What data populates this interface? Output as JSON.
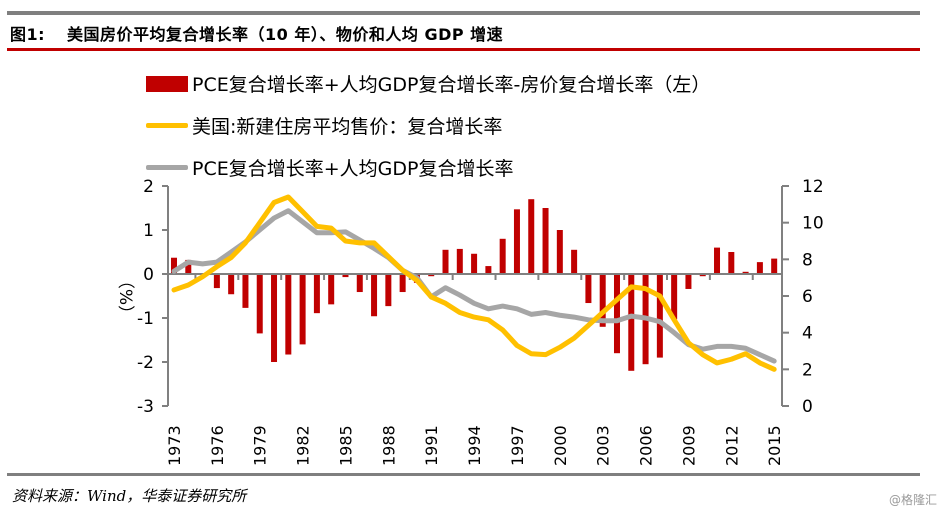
{
  "header": {
    "figure_label": "图1:",
    "title": "美国房价平均复合增长率（10 年）、物价和人均 GDP 增速"
  },
  "footer": {
    "source": "资料来源：Wind，华泰证券研究所",
    "watermark": "@格隆汇"
  },
  "colors": {
    "bar": "#c00000",
    "yellow_line": "#ffc000",
    "gray_line": "#a6a6a6",
    "axis": "#808080",
    "title_rule": "#c00000"
  },
  "chart_data": {
    "type": "bar+line",
    "title": "美国房价平均复合增长率（10 年）、物价和人均 GDP 增速",
    "xlabel": "",
    "ylabel_left": "（%）",
    "ylabel_right": "",
    "ylim_left": [
      -3,
      2
    ],
    "ylim_right": [
      0,
      12
    ],
    "yticks_left": [
      "2",
      "1",
      "0",
      "-1",
      "-2",
      "-3"
    ],
    "yticks_left_values": [
      2,
      1,
      0,
      -1,
      -2,
      -3
    ],
    "yticks_right": [
      "12",
      "10",
      "8",
      "6",
      "4",
      "2",
      "0"
    ],
    "yticks_right_values": [
      12,
      10,
      8,
      6,
      4,
      2,
      0
    ],
    "grid": false,
    "legend_position": "top",
    "x": [
      1973,
      1974,
      1975,
      1976,
      1977,
      1978,
      1979,
      1980,
      1981,
      1982,
      1983,
      1984,
      1985,
      1986,
      1987,
      1988,
      1989,
      1990,
      1991,
      1992,
      1993,
      1994,
      1995,
      1996,
      1997,
      1998,
      1999,
      2000,
      2001,
      2002,
      2003,
      2004,
      2005,
      2006,
      2007,
      2008,
      2009,
      2010,
      2011,
      2012,
      2013,
      2014,
      2015
    ],
    "x_tick_labels": [
      "1973",
      "1976",
      "1979",
      "1982",
      "1985",
      "1988",
      "1991",
      "1994",
      "1997",
      "2000",
      "2003",
      "2006",
      "2009",
      "2012",
      "2015"
    ],
    "series": [
      {
        "name": "PCE复合增长率+人均GDP复合增长率-房价复合增长率（左）",
        "type": "bar",
        "axis": "left",
        "values": [
          0.37,
          0.32,
          0.0,
          -0.32,
          -0.46,
          -0.77,
          -1.35,
          -2.0,
          -1.83,
          -1.6,
          -0.89,
          -0.69,
          -0.07,
          -0.41,
          -0.96,
          -0.73,
          -0.41,
          -0.2,
          -0.05,
          0.55,
          0.57,
          0.46,
          0.18,
          0.8,
          1.47,
          1.7,
          1.5,
          1.0,
          0.55,
          -0.66,
          -1.2,
          -1.8,
          -2.2,
          -2.05,
          -1.9,
          -1.03,
          -0.34,
          -0.05,
          0.6,
          0.5,
          0.05,
          0.27,
          0.35
        ]
      },
      {
        "name": "美国:新建住房平均售价：复合增长率",
        "type": "line",
        "axis": "right",
        "values": [
          6.33,
          6.6,
          7.05,
          7.6,
          8.1,
          8.9,
          10.0,
          11.1,
          11.4,
          10.6,
          9.8,
          9.7,
          9.0,
          8.9,
          8.9,
          8.15,
          7.4,
          6.85,
          5.95,
          5.6,
          5.1,
          4.85,
          4.7,
          4.15,
          3.3,
          2.85,
          2.8,
          3.2,
          3.7,
          4.4,
          5.1,
          5.8,
          6.5,
          6.4,
          6.0,
          4.7,
          3.45,
          2.8,
          2.35,
          2.55,
          2.85,
          2.35,
          2.0
        ]
      },
      {
        "name": "PCE复合增长率+人均GDP复合增长率",
        "type": "line",
        "axis": "right",
        "values": [
          7.35,
          7.85,
          7.75,
          7.85,
          8.4,
          8.95,
          9.6,
          10.25,
          10.65,
          10.05,
          9.45,
          9.45,
          9.5,
          9.05,
          8.6,
          8.1,
          7.4,
          7.0,
          5.95,
          6.45,
          6.05,
          5.6,
          5.3,
          5.45,
          5.3,
          5.0,
          5.1,
          4.95,
          4.85,
          4.7,
          4.65,
          4.65,
          4.9,
          4.8,
          4.6,
          4.0,
          3.35,
          3.1,
          3.25,
          3.25,
          3.15,
          2.8,
          2.45
        ]
      }
    ]
  }
}
